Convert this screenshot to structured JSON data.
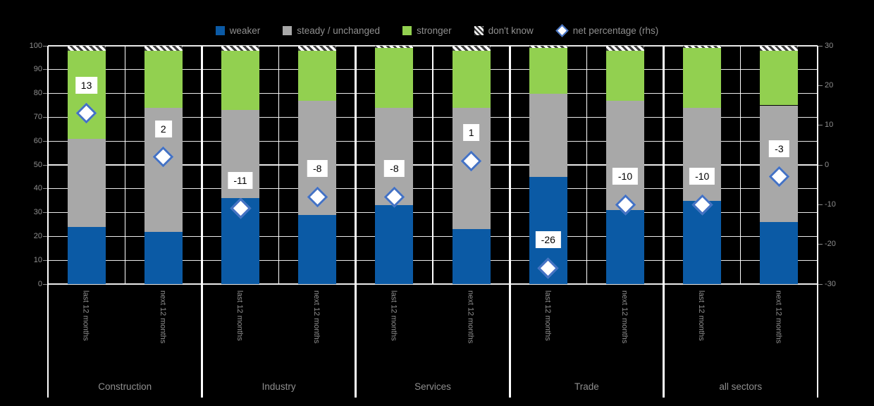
{
  "legend": {
    "items": [
      {
        "label": "weaker",
        "swatch": "square",
        "color": "#0b5aa5"
      },
      {
        "label": "steady / unchanged",
        "swatch": "square",
        "color": "#a8a8a8"
      },
      {
        "label": "stronger",
        "swatch": "square",
        "color": "#92d050"
      },
      {
        "label": "don't know",
        "swatch": "hatch",
        "color": "#ffffff"
      },
      {
        "label": "net percentage (rhs)",
        "swatch": "diamond",
        "color": "#4472c4"
      }
    ]
  },
  "chart_data": {
    "type": "bar",
    "stacked": true,
    "legend_position": "top",
    "grid": true,
    "groups": [
      "Construction",
      "Industry",
      "Services",
      "Trade",
      "all sectors"
    ],
    "categories": [
      "last 12 months",
      "next 12 months",
      "last 12 months",
      "next 12 months",
      "last 12 months",
      "next 12 months",
      "last 12 months",
      "next 12 months",
      "last 12 months",
      "next 12 months"
    ],
    "series": [
      {
        "name": "weaker",
        "type": "bar",
        "color": "#0b5aa5",
        "values": [
          24,
          22,
          36,
          29,
          33,
          23,
          45,
          31,
          35,
          26
        ]
      },
      {
        "name": "steady / unchanged",
        "type": "bar",
        "color": "#a8a8a8",
        "values": [
          37,
          52,
          37,
          48,
          41,
          51,
          35,
          46,
          39,
          49
        ]
      },
      {
        "name": "stronger",
        "type": "bar",
        "color": "#92d050",
        "values": [
          37,
          24,
          25,
          21,
          25,
          24,
          19,
          21,
          25,
          23
        ]
      },
      {
        "name": "don't know",
        "type": "bar",
        "pattern": "diagonal-hatch",
        "values": [
          2,
          2,
          2,
          2,
          1,
          2,
          1,
          2,
          1,
          2
        ]
      },
      {
        "name": "net percentage (rhs)",
        "type": "scatter-diamond",
        "axis": "right",
        "values": [
          13,
          2,
          -11,
          -8,
          -8,
          1,
          -26,
          -10,
          -10,
          -3
        ]
      }
    ],
    "left_axis": {
      "min": 0,
      "max": 100,
      "ticks": [
        100,
        90,
        80,
        70,
        60,
        50,
        40,
        30,
        20,
        10,
        0
      ]
    },
    "right_axis": {
      "min": -30,
      "max": 30,
      "ticks": [
        30,
        20,
        10,
        0,
        -10,
        -20,
        -30
      ]
    }
  },
  "colors": {
    "background": "#000000",
    "gridline": "#e9e9e9",
    "separator": "#ffffff",
    "axis_text": "#8f8f8f",
    "net_label_bg": "#ffffff",
    "net_label_text": "#000000",
    "diamond_border": "#4472c4",
    "diamond_fill": "#ffffff"
  }
}
